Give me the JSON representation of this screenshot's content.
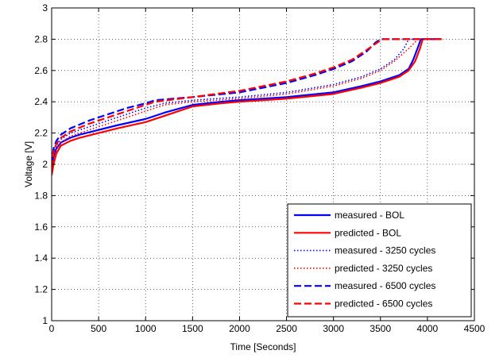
{
  "chart_data": {
    "type": "line",
    "title": "",
    "xlabel": "Time [Seconds]",
    "ylabel": "Voltage [V]",
    "xlim": [
      0,
      4500
    ],
    "ylim": [
      1,
      3
    ],
    "xticks": [
      0,
      500,
      1000,
      1500,
      2000,
      2500,
      3000,
      3500,
      4000,
      4500
    ],
    "yticks": [
      1,
      1.2,
      1.4,
      1.6,
      1.8,
      2,
      2.2,
      2.4,
      2.6,
      2.8,
      3
    ],
    "xtick_labels": [
      "0",
      "500",
      "1000",
      "1500",
      "2000",
      "2500",
      "3000",
      "3500",
      "4000",
      "4500"
    ],
    "ytick_labels": [
      "1",
      "1.2",
      "1.4",
      "1.6",
      "1.8",
      "2",
      "2.2",
      "2.4",
      "2.6",
      "2.8",
      "3"
    ],
    "grid": true,
    "grid_style": "dotted",
    "legend_position": "bottom-right",
    "series": [
      {
        "name": "measured - BOL",
        "color": "#0000ff",
        "style": "solid",
        "x": [
          0,
          20,
          50,
          100,
          200,
          300,
          500,
          700,
          1000,
          1200,
          1500,
          1800,
          2000,
          2500,
          3000,
          3300,
          3500,
          3700,
          3800,
          3850,
          3900,
          3930,
          4150
        ],
        "y": [
          1.95,
          2.05,
          2.1,
          2.14,
          2.17,
          2.19,
          2.22,
          2.25,
          2.29,
          2.33,
          2.38,
          2.4,
          2.41,
          2.43,
          2.46,
          2.5,
          2.53,
          2.57,
          2.61,
          2.67,
          2.75,
          2.8,
          2.8
        ]
      },
      {
        "name": "predicted - BOL",
        "color": "#ff0000",
        "style": "solid",
        "x": [
          0,
          20,
          50,
          100,
          200,
          300,
          500,
          700,
          1000,
          1200,
          1500,
          1800,
          2000,
          2500,
          3000,
          3300,
          3500,
          3700,
          3800,
          3870,
          3920,
          3950,
          4150
        ],
        "y": [
          1.93,
          2.0,
          2.07,
          2.12,
          2.15,
          2.17,
          2.2,
          2.23,
          2.27,
          2.31,
          2.37,
          2.39,
          2.4,
          2.42,
          2.45,
          2.49,
          2.52,
          2.56,
          2.6,
          2.66,
          2.74,
          2.8,
          2.8
        ]
      },
      {
        "name": "measured - 3250 cycles",
        "color": "#0000ff",
        "style": "dotted",
        "x": [
          0,
          20,
          50,
          100,
          200,
          400,
          600,
          800,
          1000,
          1200,
          1500,
          2000,
          2500,
          3000,
          3300,
          3500,
          3650,
          3750,
          3800,
          4150
        ],
        "y": [
          1.97,
          2.07,
          2.12,
          2.16,
          2.2,
          2.24,
          2.28,
          2.32,
          2.36,
          2.39,
          2.41,
          2.43,
          2.46,
          2.51,
          2.56,
          2.61,
          2.67,
          2.74,
          2.8,
          2.8
        ]
      },
      {
        "name": "predicted - 3250 cycles",
        "color": "#ff0000",
        "style": "dotted",
        "x": [
          0,
          20,
          50,
          100,
          200,
          400,
          600,
          800,
          1000,
          1200,
          1500,
          2000,
          2500,
          3000,
          3300,
          3500,
          3650,
          3800,
          3900,
          4150
        ],
        "y": [
          1.95,
          2.04,
          2.1,
          2.14,
          2.18,
          2.22,
          2.26,
          2.3,
          2.34,
          2.38,
          2.4,
          2.42,
          2.45,
          2.5,
          2.55,
          2.6,
          2.66,
          2.74,
          2.8,
          2.8
        ]
      },
      {
        "name": "measured - 6500 cycles",
        "color": "#0000ff",
        "style": "dashed",
        "x": [
          0,
          20,
          50,
          100,
          200,
          400,
          600,
          800,
          1000,
          1100,
          1500,
          2000,
          2500,
          2800,
          3000,
          3200,
          3350,
          3450,
          3500,
          4150
        ],
        "y": [
          2.0,
          2.1,
          2.15,
          2.19,
          2.23,
          2.28,
          2.32,
          2.36,
          2.39,
          2.41,
          2.43,
          2.46,
          2.52,
          2.57,
          2.61,
          2.66,
          2.72,
          2.78,
          2.8,
          2.8
        ]
      },
      {
        "name": "predicted - 6500 cycles",
        "color": "#ff0000",
        "style": "dashed",
        "x": [
          0,
          20,
          50,
          100,
          200,
          400,
          600,
          800,
          1000,
          1100,
          1500,
          2000,
          2500,
          2800,
          3000,
          3200,
          3350,
          3470,
          3520,
          4150
        ],
        "y": [
          1.98,
          2.08,
          2.13,
          2.17,
          2.21,
          2.26,
          2.3,
          2.34,
          2.38,
          2.4,
          2.43,
          2.47,
          2.53,
          2.58,
          2.62,
          2.67,
          2.73,
          2.78,
          2.8,
          2.8
        ]
      }
    ]
  }
}
